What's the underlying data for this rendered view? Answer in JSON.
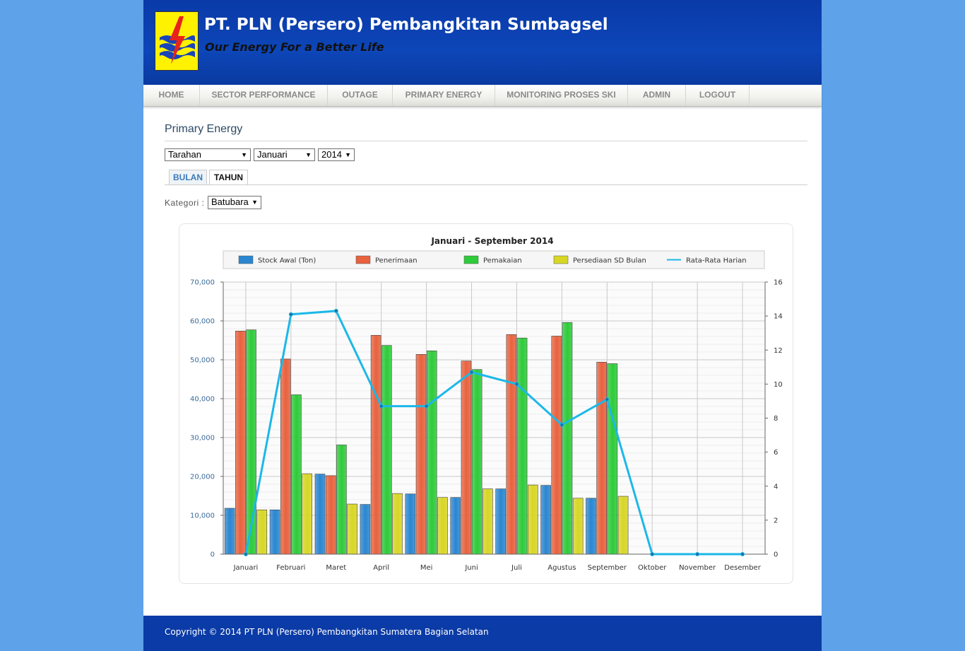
{
  "header": {
    "title": "PT. PLN (Persero) Pembangkitan Sumbagsel",
    "tagline": "Our Energy For a Better Life",
    "logo_icon": "pln-lightning-logo-icon"
  },
  "nav": {
    "items": [
      "HOME",
      "SECTOR PERFORMANCE",
      "OUTAGE",
      "PRIMARY ENERGY",
      "MONITORING PROSES SKI",
      "ADMIN",
      "LOGOUT"
    ]
  },
  "content": {
    "title": "Primary Energy",
    "filters": {
      "unit": "Tarahan",
      "month": "Januari",
      "year": "2014"
    },
    "tabs": [
      "BULAN",
      "TAHUN"
    ],
    "kategori_label": "Kategori :",
    "kategori_value": "Batubara"
  },
  "chart_data": {
    "type": "bar",
    "title": "Januari - September 2014",
    "categories": [
      "Januari",
      "Februari",
      "Maret",
      "April",
      "Mei",
      "Juni",
      "Juli",
      "Agustus",
      "September",
      "Oktober",
      "November",
      "Desember"
    ],
    "ylim": [
      0,
      70000
    ],
    "y_ticks": [
      "0",
      "10,000",
      "20,000",
      "30,000",
      "40,000",
      "50,000",
      "60,000",
      "70,000"
    ],
    "y2lim": [
      0,
      16
    ],
    "y2_ticks": [
      "0",
      "2",
      "4",
      "6",
      "8",
      "10",
      "12",
      "14",
      "16"
    ],
    "legend_position": "top",
    "grid": true,
    "series": [
      {
        "name": "Stock Awal (Ton)",
        "type": "bar",
        "axis": "left",
        "color": "#2a86d1",
        "values": [
          11800,
          11400,
          20600,
          12800,
          15500,
          14600,
          16800,
          17700,
          14400,
          null,
          null,
          null
        ]
      },
      {
        "name": "Penerimaan",
        "type": "bar",
        "axis": "left",
        "color": "#e8623e",
        "values": [
          57400,
          50200,
          20200,
          56300,
          51400,
          49700,
          56500,
          56100,
          49400,
          null,
          null,
          null
        ]
      },
      {
        "name": "Pemakaian",
        "type": "bar",
        "axis": "left",
        "color": "#2ecb3a",
        "values": [
          57700,
          41000,
          28100,
          53700,
          52300,
          47500,
          55600,
          59600,
          49000,
          null,
          null,
          null
        ]
      },
      {
        "name": "Persediaan SD Bulan",
        "type": "bar",
        "axis": "left",
        "color": "#d8d624",
        "values": [
          11400,
          20700,
          12900,
          15600,
          14600,
          16800,
          17800,
          14400,
          14900,
          null,
          null,
          null
        ]
      },
      {
        "name": "Rata-Rata Harian",
        "type": "line",
        "axis": "right",
        "color": "#1bb8e8",
        "values": [
          0,
          14.1,
          14.3,
          8.7,
          8.7,
          10.7,
          10.0,
          7.6,
          9.1,
          0,
          0,
          0
        ]
      }
    ]
  },
  "footer": {
    "copyright": "Copyright © 2014 PT PLN (Persero) Pembangkitan Sumatera Bagian Selatan"
  }
}
